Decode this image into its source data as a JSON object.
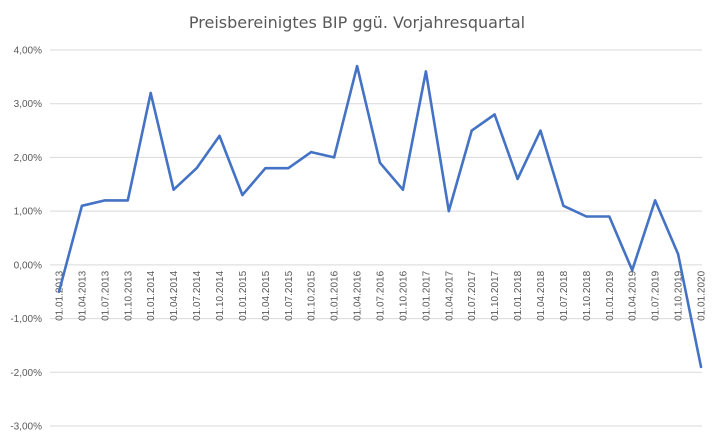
{
  "chart_data": {
    "type": "line",
    "title": "Preisbereinigtes BIP ggü. Vorjahresquartal",
    "xlabel": "",
    "ylabel": "",
    "ylim": [
      -0.03,
      0.04
    ],
    "ytick_values": [
      -0.03,
      -0.02,
      -0.01,
      0.0,
      0.01,
      0.02,
      0.03,
      0.04
    ],
    "ytick_labels": [
      "-3,00%",
      "-2,00%",
      "-1,00%",
      "0,00%",
      "1,00%",
      "2,00%",
      "3,00%",
      "4,00%"
    ],
    "grid": true,
    "legend": "none",
    "line_color": "#4472C4",
    "categories": [
      "01.01.2013",
      "01.04.2013",
      "01.07.2013",
      "01.10.2013",
      "01.01.2014",
      "01.04.2014",
      "01.07.2014",
      "01.10.2014",
      "01.01.2015",
      "01.04.2015",
      "01.07.2015",
      "01.10.2015",
      "01.01.2016",
      "01.04.2016",
      "01.07.2016",
      "01.10.2016",
      "01.01.2017",
      "01.04.2017",
      "01.07.2017",
      "01.10.2017",
      "01.01.2018",
      "01.04.2018",
      "01.07.2018",
      "01.10.2018",
      "01.01.2019",
      "01.04.2019",
      "01.07.2019",
      "01.10.2019",
      "01.01.2020"
    ],
    "series": [
      {
        "values": [
          -0.005,
          0.011,
          0.012,
          0.012,
          0.032,
          0.014,
          0.018,
          0.024,
          0.013,
          0.018,
          0.018,
          0.021,
          0.02,
          0.037,
          0.019,
          0.014,
          0.036,
          0.01,
          0.025,
          0.028,
          0.016,
          0.025,
          0.011,
          0.009,
          0.009,
          -0.001,
          0.012,
          0.002,
          -0.019
        ]
      }
    ]
  }
}
